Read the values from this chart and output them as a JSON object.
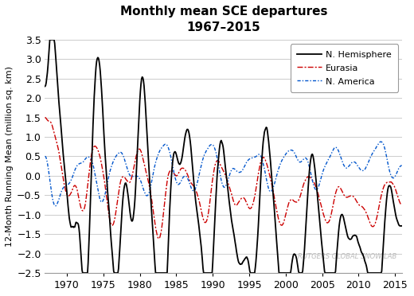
{
  "title_line1": "Monthly mean SCE departures",
  "title_line2": "1967–2015",
  "ylabel": "12-Month Running Mean (million sq. km)",
  "xlim": [
    1967.0,
    2016.0
  ],
  "ylim": [
    -2.5,
    3.5
  ],
  "yticks": [
    -2.5,
    -2.0,
    -1.5,
    -1.0,
    -0.5,
    0.0,
    0.5,
    1.0,
    1.5,
    2.0,
    2.5,
    3.0,
    3.5
  ],
  "xticks": [
    1970,
    1975,
    1980,
    1985,
    1990,
    1995,
    2000,
    2005,
    2010,
    2015
  ],
  "nh_color": "#000000",
  "eurasia_color": "#cc0000",
  "namerica_color": "#0055cc",
  "watermark": "RUTGERS GLOBAL SNOW LAB",
  "watermark_color": "#bbbbbb",
  "legend_labels": [
    "N. Hemisphere",
    "Eurasia",
    "N. America"
  ],
  "bg_color": "#ffffff",
  "grid_color": "#cccccc",
  "title_fontsize": 11,
  "tick_fontsize": 9,
  "ylabel_fontsize": 8
}
